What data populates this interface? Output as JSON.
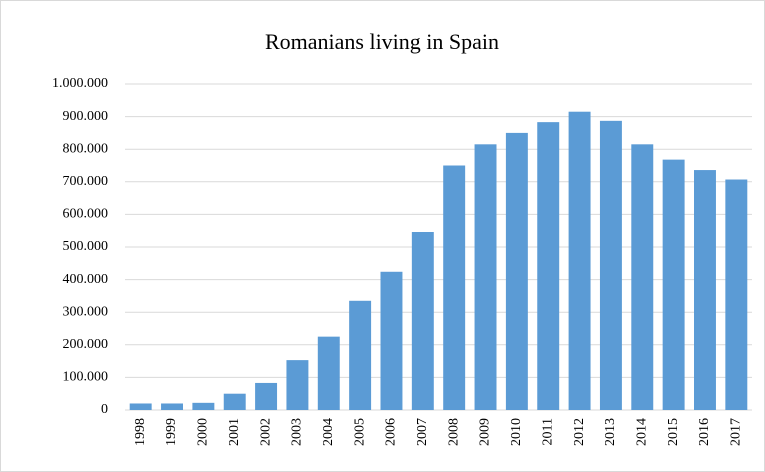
{
  "chart_data": {
    "type": "bar",
    "title": "Romanians living in Spain",
    "categories": [
      "1998",
      "1999",
      "2000",
      "2001",
      "2002",
      "2003",
      "2004",
      "2005",
      "2006",
      "2007",
      "2008",
      "2009",
      "2010",
      "2011",
      "2012",
      "2013",
      "2014",
      "2015",
      "2016",
      "2017"
    ],
    "values": [
      20000,
      20000,
      22000,
      50000,
      83000,
      153000,
      225000,
      335000,
      424000,
      546000,
      750000,
      815000,
      850000,
      883000,
      915000,
      887000,
      815000,
      768000,
      736000,
      707000
    ],
    "color": "#5b9bd5",
    "ylim": [
      0,
      1000000
    ],
    "yticks": [
      0,
      {
        "value": 100000,
        "label": "100.000"
      },
      {
        "value": 200000,
        "label": "200.000"
      },
      {
        "value": 300000,
        "label": "300.000"
      },
      {
        "value": 400000,
        "label": "400.000"
      },
      {
        "value": 500000,
        "label": "500.000"
      },
      {
        "value": 600000,
        "label": "600.000"
      },
      {
        "value": 700000,
        "label": "700.000"
      },
      {
        "value": 800000,
        "label": "800.000"
      },
      {
        "value": 900000,
        "label": "900.000"
      },
      {
        "value": 1000000,
        "label": "1.000.000"
      }
    ],
    "grid": true
  }
}
